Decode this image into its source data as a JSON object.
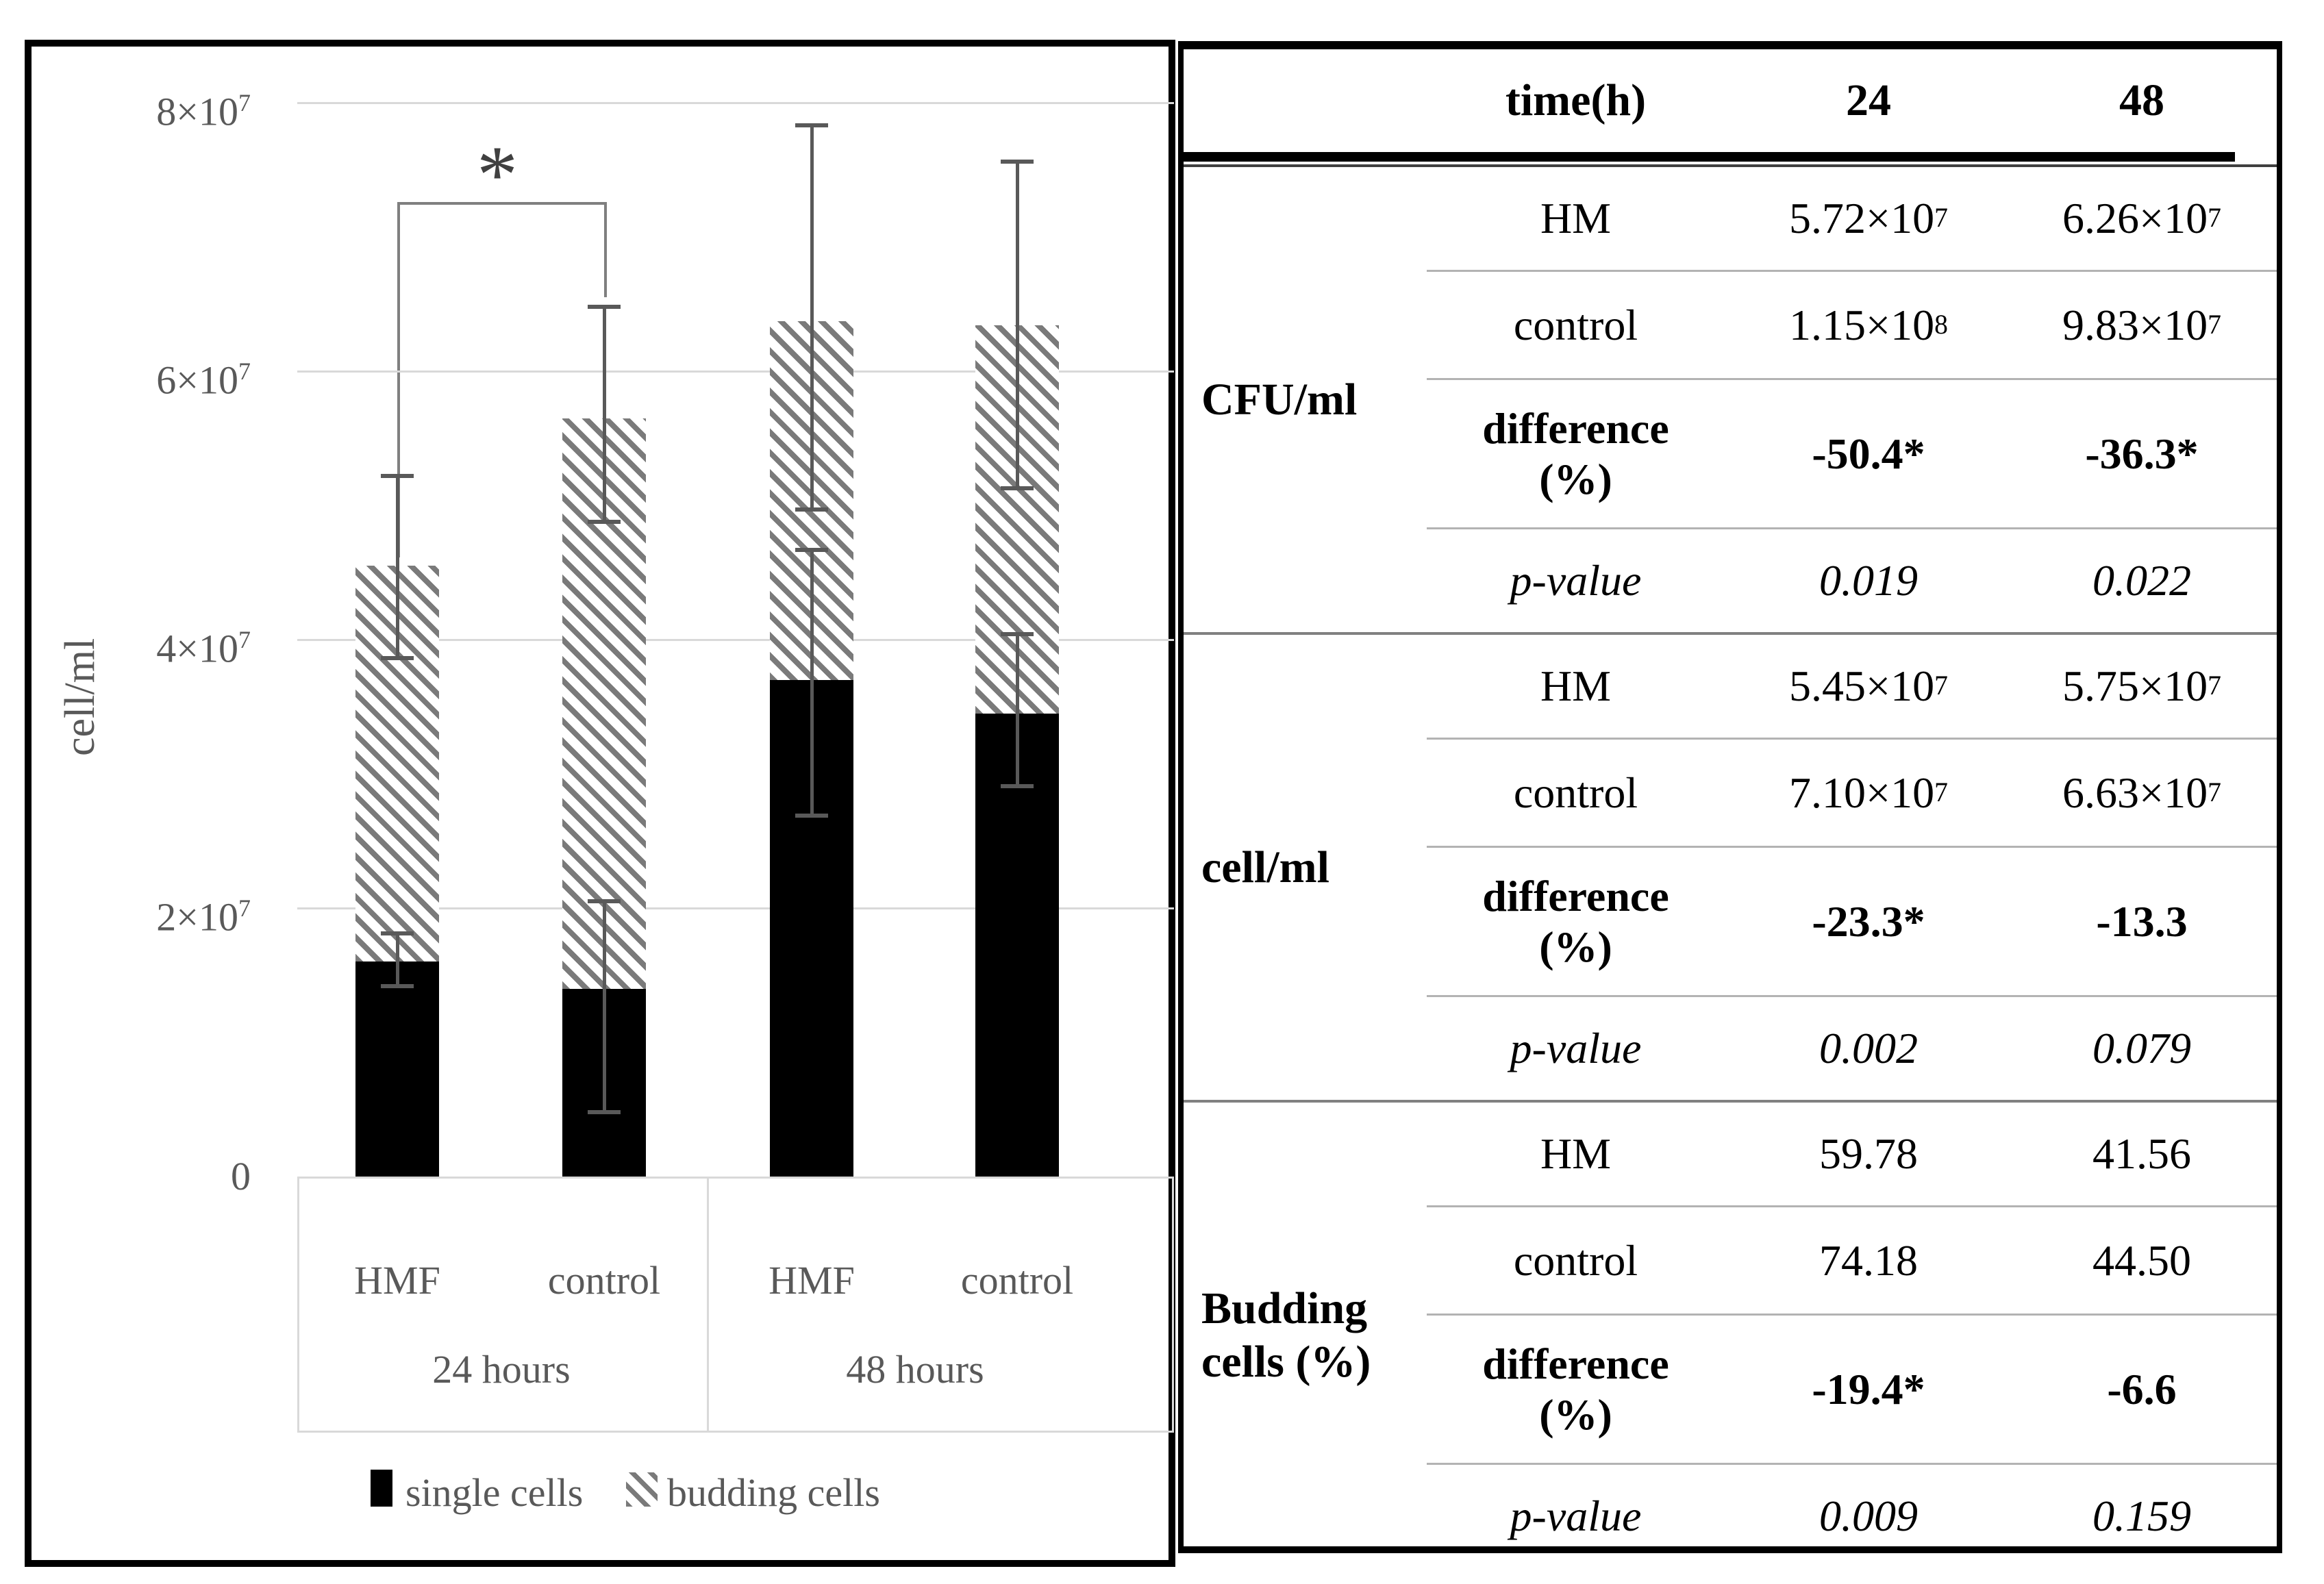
{
  "chart": {
    "ylabel": "cell/ml",
    "y_axis": {
      "ticks": [
        {
          "value": 8,
          "label": "8×10^7"
        },
        {
          "value": 6,
          "label": "6×10^7"
        },
        {
          "value": 4,
          "label": "4×10^7"
        },
        {
          "value": 2,
          "label": "2×10^7"
        },
        {
          "value": 0,
          "label": "0"
        }
      ]
    },
    "x_axis": {
      "bar_labels": [
        "HMF",
        "control",
        "HMF",
        "control"
      ],
      "group_labels": [
        "24 hours",
        "48 hours"
      ]
    },
    "significance": {
      "label": "*",
      "between": [
        "HMF 24 hours",
        "control 24 hours"
      ]
    },
    "legend": [
      {
        "label": "single cells",
        "swatch": "black-square-icon"
      },
      {
        "label": "budding cells",
        "swatch": "diagonal-hatch-icon"
      }
    ]
  },
  "chart_data": {
    "type": "bar",
    "stacked": true,
    "unit": "×10^7 cell/ml",
    "title": "",
    "xlabel": "",
    "ylabel": "cell/ml",
    "ylim": [
      0,
      8
    ],
    "yticks": [
      0,
      2,
      4,
      6,
      8
    ],
    "grid": true,
    "legend_position": "bottom",
    "categories": [
      "HMF 24 hours",
      "control 24 hours",
      "HMF 48 hours",
      "control 48 hours"
    ],
    "series": [
      {
        "name": "single cells",
        "values": [
          1.6,
          1.4,
          3.7,
          3.45
        ],
        "error_caps": [
          [
            1.42,
            1.81
          ],
          [
            0.48,
            2.05
          ],
          [
            2.69,
            4.67
          ],
          [
            2.91,
            4.04
          ]
        ]
      },
      {
        "name": "budding cells",
        "values": [
          2.95,
          4.25,
          2.67,
          2.89
        ],
        "stack_totals": [
          4.55,
          5.65,
          6.37,
          6.34
        ],
        "error_caps_on_total": [
          [
            3.86,
            5.22
          ],
          [
            4.88,
            6.48
          ],
          [
            4.97,
            7.83
          ],
          [
            5.13,
            7.56
          ]
        ]
      }
    ],
    "annotations": [
      {
        "text": "*",
        "between_bars": [
          0,
          1
        ]
      }
    ]
  },
  "table": {
    "header": {
      "corner": "",
      "time": "time(h)",
      "h24": "24",
      "h48": "48"
    },
    "groups": [
      {
        "label": "CFU/ml",
        "rows": [
          {
            "name": "HM",
            "style": "normal",
            "v24": "5.72×10^7",
            "v48": "6.26×10^7"
          },
          {
            "name": "control",
            "style": "normal",
            "v24": "1.15×10^8",
            "v48": "9.83×10^7"
          },
          {
            "name": "difference\n(%)",
            "style": "bold",
            "v24": "-50.4*",
            "v48": "-36.3*"
          },
          {
            "name": "p-value",
            "style": "italic",
            "v24": "0.019",
            "v48": "0.022"
          }
        ]
      },
      {
        "label": "cell/ml",
        "rows": [
          {
            "name": "HM",
            "style": "normal",
            "v24": "5.45×10^7",
            "v48": "5.75×10^7"
          },
          {
            "name": "control",
            "style": "normal",
            "v24": "7.10×10^7",
            "v48": "6.63×10^7"
          },
          {
            "name": "difference\n(%)",
            "style": "bold",
            "v24": "-23.3*",
            "v48": "-13.3"
          },
          {
            "name": "p-value",
            "style": "italic",
            "v24": "0.002",
            "v48": "0.079"
          }
        ]
      },
      {
        "label": "Budding\ncells (%)",
        "rows": [
          {
            "name": "HM",
            "style": "normal",
            "v24": "59.78",
            "v48": "41.56"
          },
          {
            "name": "control",
            "style": "normal",
            "v24": "74.18",
            "v48": "44.50"
          },
          {
            "name": "difference\n(%)",
            "style": "bold",
            "v24": "-19.4*",
            "v48": "-6.6"
          },
          {
            "name": "p-value",
            "style": "italic",
            "v24": "0.009",
            "v48": "0.159"
          }
        ]
      }
    ]
  }
}
